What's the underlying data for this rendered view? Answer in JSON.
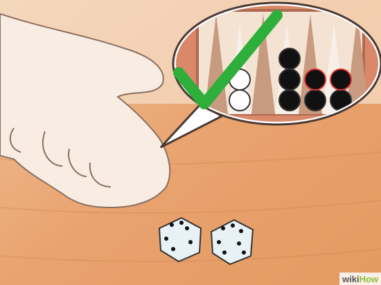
{
  "watermark": {
    "prefix": "wiki",
    "suffix": "How"
  }
}
